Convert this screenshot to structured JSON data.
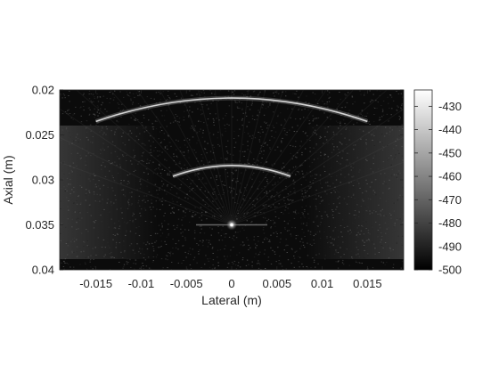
{
  "chart_data": {
    "type": "heatmap",
    "colormap": "gray",
    "xlabel": "Lateral (m)",
    "ylabel": "Axial (m)",
    "xlim": [
      -0.019,
      0.019
    ],
    "ylim": [
      0.02,
      0.04
    ],
    "y_reversed": true,
    "x_ticks": [
      -0.015,
      -0.01,
      -0.005,
      0,
      0.005,
      0.01,
      0.015
    ],
    "x_tick_labels": [
      "-0.015",
      "-0.01",
      "-0.005",
      "0",
      "0.005",
      "0.01",
      "0.015"
    ],
    "y_ticks": [
      0.02,
      0.025,
      0.03,
      0.035,
      0.04
    ],
    "y_tick_labels": [
      "0.02",
      "0.025",
      "0.03",
      "0.035",
      "0.04"
    ],
    "colorbar": {
      "range": [
        -500,
        -423
      ],
      "ticks": [
        -500,
        -490,
        -480,
        -470,
        -460,
        -450,
        -440,
        -430
      ],
      "tick_labels": [
        "-500",
        "-490",
        "-480",
        "-470",
        "-460",
        "-450",
        "-440",
        "-430"
      ]
    },
    "features": [
      {
        "kind": "arc",
        "x_from": -0.015,
        "x_to": 0.015,
        "y_center": 0.0209,
        "y_edge": 0.0235
      },
      {
        "kind": "arc",
        "x_from": -0.0065,
        "x_to": 0.0065,
        "y_center": 0.0284,
        "y_edge": 0.0296
      },
      {
        "kind": "point",
        "x": 0.0,
        "y": 0.035
      }
    ]
  }
}
